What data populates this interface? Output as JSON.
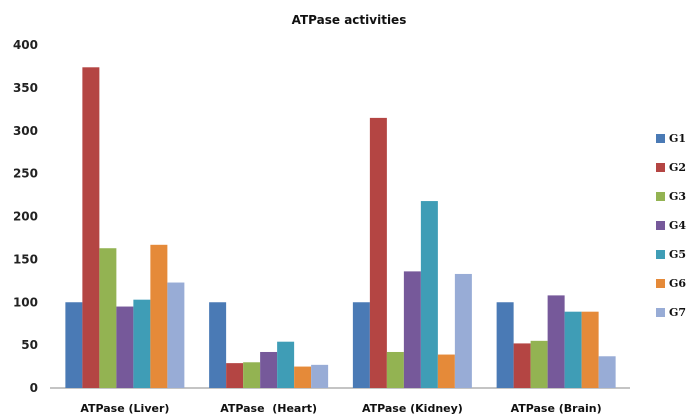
{
  "chart_data": {
    "type": "bar",
    "title": "ATPase activities",
    "categories": [
      "ATPase (Liver)",
      "ATPase  (Heart)",
      "ATPase (Kidney)",
      "ATPase (Brain)"
    ],
    "series": [
      {
        "name": "G1",
        "color": "#4a7ab5",
        "values": [
          100,
          100,
          100,
          100
        ]
      },
      {
        "name": "G2",
        "color": "#b44543",
        "values": [
          374,
          29,
          315,
          52
        ]
      },
      {
        "name": "G3",
        "color": "#93b352",
        "values": [
          163,
          30,
          42,
          55
        ]
      },
      {
        "name": "G4",
        "color": "#76599a",
        "values": [
          95,
          42,
          136,
          108
        ]
      },
      {
        "name": "G5",
        "color": "#3f9db6",
        "values": [
          103,
          54,
          218,
          89
        ]
      },
      {
        "name": "G6",
        "color": "#e58a39",
        "values": [
          167,
          25,
          39,
          89
        ]
      },
      {
        "name": "G7",
        "color": "#98acd6",
        "values": [
          123,
          27,
          133,
          37
        ]
      }
    ],
    "yticks": [
      "0",
      "50",
      "100",
      "150",
      "200",
      "250",
      "300",
      "350",
      "400"
    ],
    "ylim": [
      0,
      400
    ],
    "xlabel": "",
    "ylabel": "",
    "grid": false,
    "legend_position": "right"
  }
}
